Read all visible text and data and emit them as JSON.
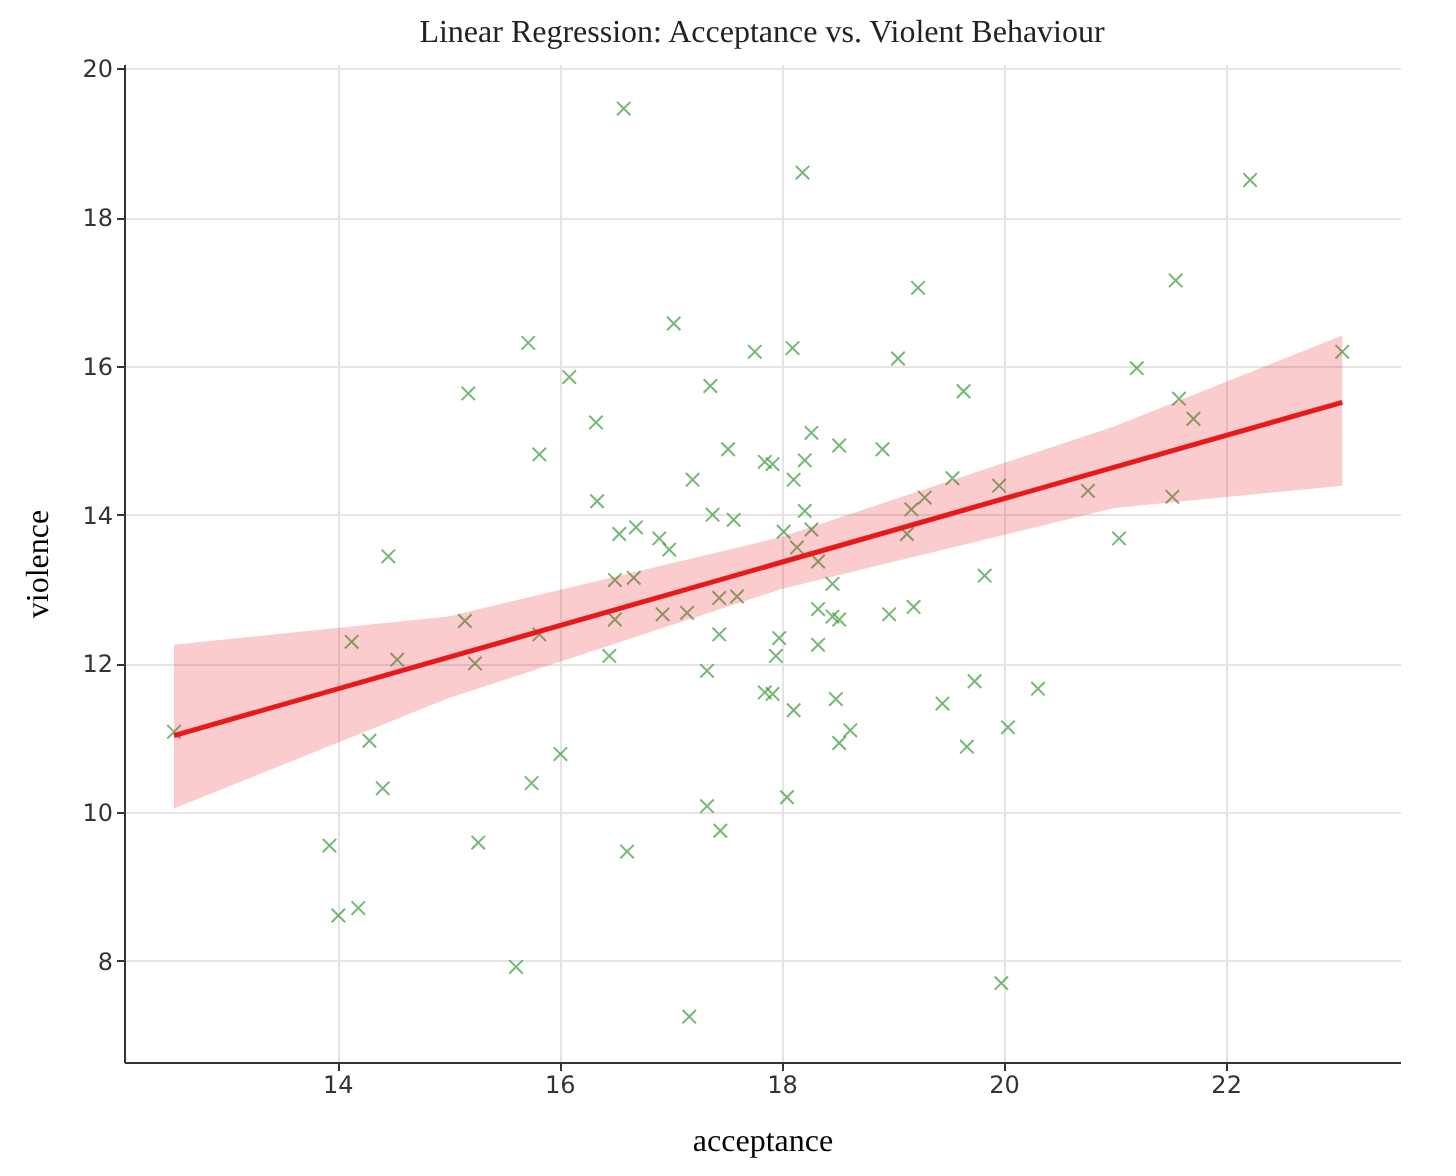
{
  "chart_data": {
    "type": "scatter",
    "title": "Linear Regression: Acceptance vs. Violent Behaviour",
    "xlabel": "acceptance",
    "ylabel": "violence",
    "xlim": [
      12.08,
      23.57
    ],
    "ylim": [
      6.64,
      20.06
    ],
    "xticks": [
      14,
      16,
      18,
      20,
      22
    ],
    "yticks": [
      8,
      10,
      12,
      14,
      16,
      18,
      20
    ],
    "grid": true,
    "series": [
      {
        "color": "#3c9a3c",
        "marker": "cross",
        "x": [
          16.58,
          17.03,
          17.76,
          15.72,
          16.09,
          15.18,
          17.36,
          16.33,
          15.82,
          17.52,
          17.85,
          17.2,
          16.34,
          17.38,
          17.57,
          16.54,
          16.69,
          16.9,
          16.99,
          14.46,
          16.5,
          16.67,
          18.19,
          22.22,
          19.23,
          21.55,
          18.1,
          19.05,
          21.2,
          23.05,
          19.64,
          21.58,
          21.71,
          18.27,
          18.52,
          18.91,
          17.92,
          18.21,
          18.11,
          18.21,
          19.54,
          19.29,
          19.17,
          19.96,
          20.76,
          21.52,
          18.02,
          18.27,
          18.14,
          19.13,
          21.04,
          18.33,
          18.46,
          19.83,
          12.53,
          14.13,
          14.54,
          15.15,
          15.24,
          15.82,
          16.5,
          16.45,
          16.93,
          17.15,
          17.44,
          17.6,
          17.44,
          17.33,
          17.85,
          14.29,
          14.41,
          15.75,
          16.01,
          13.93,
          15.27,
          16.61,
          17.33,
          17.45,
          14.01,
          14.19,
          15.61,
          17.17,
          18.33,
          18.46,
          18.52,
          17.98,
          17.95,
          18.33,
          18.97,
          19.19,
          17.92,
          18.11,
          18.49,
          18.62,
          18.52,
          19.45,
          19.74,
          20.31,
          20.04,
          19.67,
          18.05,
          19.98
        ],
        "values": [
          19.46,
          16.57,
          16.19,
          16.31,
          15.85,
          15.63,
          15.73,
          15.24,
          14.81,
          14.88,
          14.71,
          14.47,
          14.18,
          14.0,
          13.93,
          13.74,
          13.83,
          13.68,
          13.53,
          13.44,
          13.12,
          13.15,
          18.6,
          18.5,
          17.05,
          17.15,
          16.24,
          16.1,
          15.97,
          16.19,
          15.66,
          15.56,
          15.29,
          15.1,
          14.93,
          14.88,
          14.68,
          14.73,
          14.47,
          14.05,
          14.49,
          14.23,
          14.07,
          14.39,
          14.32,
          14.24,
          13.77,
          13.8,
          13.56,
          13.74,
          13.68,
          13.37,
          13.07,
          13.18,
          11.08,
          12.29,
          12.05,
          12.57,
          12.0,
          12.39,
          12.59,
          12.1,
          12.66,
          12.68,
          12.88,
          12.9,
          12.39,
          11.9,
          11.61,
          10.96,
          10.32,
          10.39,
          10.78,
          9.55,
          9.59,
          9.47,
          10.08,
          9.75,
          8.61,
          8.71,
          7.92,
          7.25,
          12.73,
          12.63,
          12.59,
          12.34,
          12.1,
          12.25,
          12.66,
          12.76,
          11.59,
          11.37,
          11.52,
          11.1,
          10.93,
          11.46,
          11.76,
          11.66,
          11.14,
          10.88,
          10.2,
          7.7
        ]
      },
      {
        "type": "line",
        "color": "#e8191a",
        "line_style": "solid",
        "marker": "none",
        "x": [
          12.53,
          15.0,
          18.0,
          21.0,
          23.05
        ],
        "values": [
          11.03,
          12.08,
          13.36,
          14.64,
          15.51
        ],
        "lower": [
          10.05,
          11.53,
          13.0,
          14.09,
          14.39
        ],
        "upper": [
          12.25,
          12.63,
          13.7,
          15.19,
          16.41
        ]
      }
    ]
  }
}
